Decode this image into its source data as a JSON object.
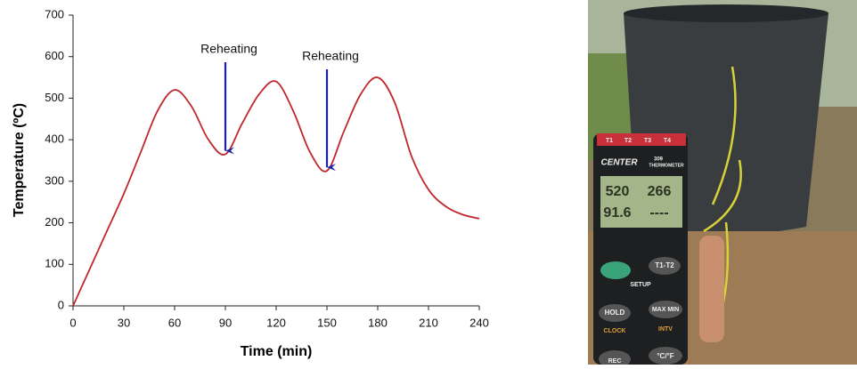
{
  "chart_data": {
    "type": "line",
    "x_label": "Time (min)",
    "y_label": "Temperature (ºC)",
    "x": [
      0,
      10,
      20,
      30,
      40,
      50,
      60,
      70,
      80,
      90,
      100,
      110,
      120,
      130,
      140,
      150,
      160,
      170,
      180,
      190,
      200,
      210,
      220,
      230,
      240
    ],
    "series": [
      {
        "color": "#c0272d",
        "values": [
          0,
          90,
          180,
          270,
          370,
          470,
          520,
          480,
          400,
          365,
          440,
          510,
          540,
          470,
          370,
          325,
          420,
          510,
          550,
          490,
          360,
          280,
          240,
          220,
          210
        ]
      }
    ],
    "annotations": [
      {
        "text": "Reheating",
        "x": 90,
        "color": "#1a23a8"
      },
      {
        "text": "Reheating",
        "x": 150,
        "color": "#1a23a8"
      }
    ],
    "xlim": [
      0,
      240
    ],
    "xticks": [
      0,
      30,
      60,
      90,
      120,
      150,
      180,
      210,
      240
    ],
    "ylim": [
      0,
      700
    ],
    "yticks": [
      0,
      100,
      200,
      300,
      400,
      500,
      600,
      700
    ],
    "grid": false
  },
  "photo": {
    "labels": [
      "T1",
      "T2",
      "T3",
      "T4",
      "CENTER",
      "309",
      "THERMOMETER",
      "520",
      "266",
      "91.6",
      "----",
      "T1-T2",
      "SETUP",
      "HOLD",
      "MAX MIN",
      "CLOCK",
      "INTV",
      "REC",
      "°C/°F"
    ]
  }
}
